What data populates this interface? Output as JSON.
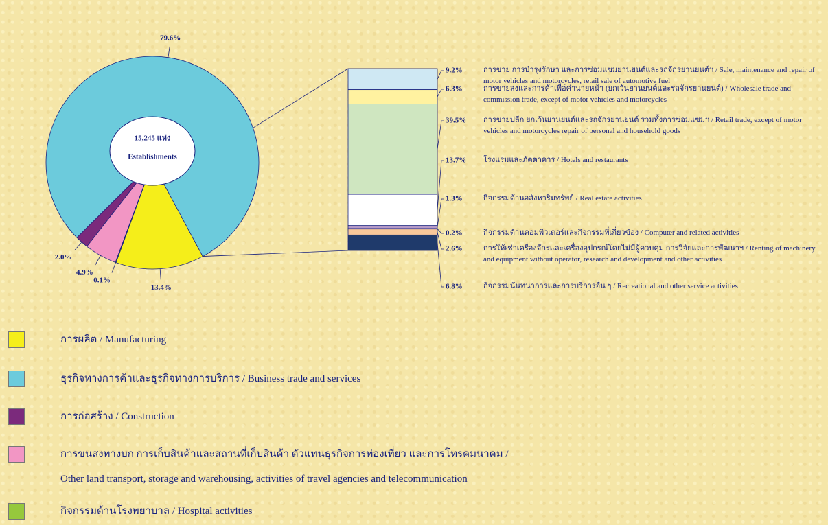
{
  "chart_data": [
    {
      "type": "pie",
      "center_text": [
        "15,245 แห่ง",
        "Establishments"
      ],
      "categories": [
        "การผลิต / Manufacturing",
        "ธุรกิจทางการค้าและธุรกิจทางการบริการ / Business trade and services",
        "การก่อสร้าง / Construction",
        "การขนส่งทางบก การเก็บสินค้าและสถานที่เก็บสินค้า ตัวแทนธุรกิจการท่องเที่ยว และการโทรคมนาคม /\nOther land transport, storage and warehousing, activities of travel agencies and telecommunication",
        "กิจกรรมด้านโรงพยาบาล / Hospital activities"
      ],
      "values": [
        13.4,
        79.6,
        2.0,
        4.9,
        0.1
      ],
      "value_labels": [
        "13.4%",
        "79.6%",
        "2.0%",
        "4.9%",
        "0.1%"
      ],
      "colors": [
        "#f5ee1a",
        "#6ccbdc",
        "#7b2a7c",
        "#f296c4",
        "#96c83c"
      ]
    },
    {
      "type": "bar",
      "categories": [
        "การขาย การบำรุงรักษา และการซ่อมแซมยานยนต์และรถจักรยานยนต์ฯ / Sale, maintenance and repair of motor vehicles and motorcycles, retail sale of  automotive fuel",
        "การขายส่งและการค้าเพื่อค่านายหน้า (ยกเว้นยานยนต์และรถจักรยานยนต์) / Wholesale trade and commission trade, except of motor vehicles and motorcycles",
        "การขายปลีก ยกเว้นยานยนต์และรถจักรยานยนต์ รวมทั้งการซ่อมแซมฯ / Retail trade, except of motor vehicles and motorcycles repair of personal and household goods",
        "โรงแรมและภัตตาคาร / Hotels and restaurants",
        "กิจกรรมด้านอสังหาริมทรัพย์ / Real estate activities",
        "กิจกรรมด้านคอมพิวเตอร์และกิจกรรมที่เกี่ยวข้อง / Computer and related activities",
        "การให้เช่าเครื่องจักรและเครื่องอุปกรณ์โดยไม่มีผู้ควบคุม การวิจัยและการพัฒนาฯ / Renting of machinery and equipment without operator, research and development and other activities",
        "กิจกรรมนันทนาการและการบริการอื่น ๆ / Recreational and other service activities"
      ],
      "values": [
        9.2,
        6.3,
        39.5,
        13.7,
        1.3,
        0.2,
        2.6,
        6.8
      ],
      "value_labels": [
        "9.2%",
        "6.3%",
        "39.5%",
        "13.7%",
        "1.3%",
        "0.2%",
        "2.6%",
        "6.8%"
      ],
      "colors": [
        "#cfe8f3",
        "#fff2a0",
        "#cfe6c0",
        "#ffffff",
        "#b59ac8",
        "#c0334a",
        "#f8c89a",
        "#1f3a6b"
      ]
    }
  ]
}
